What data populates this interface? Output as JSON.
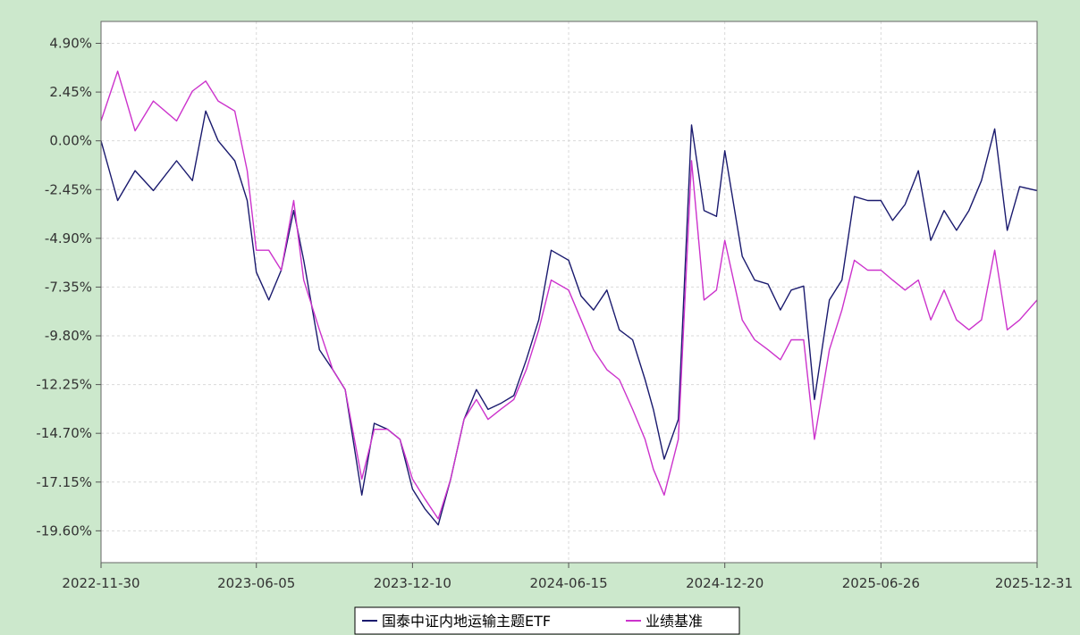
{
  "chart_data": {
    "type": "line",
    "title": "",
    "xlabel": "",
    "ylabel": "",
    "ylim": [
      -21.2,
      6.0
    ],
    "y_ticks": [
      "4.90%",
      "2.45%",
      "0.00%",
      "-2.45%",
      "-4.90%",
      "-7.35%",
      "-9.80%",
      "-12.25%",
      "-14.70%",
      "-17.15%",
      "-19.60%"
    ],
    "y_tick_values": [
      4.9,
      2.45,
      0.0,
      -2.45,
      -4.9,
      -7.35,
      -9.8,
      -12.25,
      -14.7,
      -17.15,
      -19.6
    ],
    "x_ticks": [
      "2022-11-30",
      "2023-06-05",
      "2023-12-10",
      "2024-06-15",
      "2024-12-20",
      "2025-06-26",
      "2025-12-31"
    ],
    "grid": true,
    "legend_position": "bottom",
    "colors": {
      "plot_bg": "#ffffff",
      "page_bg": "#cce8cc",
      "grid": "#d9d9d9"
    },
    "x": [
      "2022-11-30",
      "2022-12-20",
      "2023-01-10",
      "2023-02-01",
      "2023-03-01",
      "2023-03-20",
      "2023-04-05",
      "2023-04-20",
      "2023-05-10",
      "2023-05-25",
      "2023-06-05",
      "2023-06-20",
      "2023-07-05",
      "2023-07-20",
      "2023-08-01",
      "2023-08-20",
      "2023-09-05",
      "2023-09-20",
      "2023-10-10",
      "2023-10-25",
      "2023-11-10",
      "2023-11-25",
      "2023-12-10",
      "2023-12-25",
      "2024-01-10",
      "2024-01-25",
      "2024-02-10",
      "2024-02-25",
      "2024-03-10",
      "2024-03-25",
      "2024-04-10",
      "2024-04-25",
      "2024-05-10",
      "2024-05-25",
      "2024-06-15",
      "2024-06-30",
      "2024-07-15",
      "2024-07-31",
      "2024-08-15",
      "2024-08-31",
      "2024-09-15",
      "2024-09-25",
      "2024-10-08",
      "2024-10-25",
      "2024-11-10",
      "2024-11-25",
      "2024-12-10",
      "2024-12-20",
      "2025-01-10",
      "2025-01-25",
      "2025-02-10",
      "2025-02-25",
      "2025-03-10",
      "2025-03-25",
      "2025-04-07",
      "2025-04-25",
      "2025-05-10",
      "2025-05-25",
      "2025-06-10",
      "2025-06-26",
      "2025-07-10",
      "2025-07-25",
      "2025-08-10",
      "2025-08-25",
      "2025-09-10",
      "2025-09-25",
      "2025-10-10",
      "2025-10-25",
      "2025-11-10",
      "2025-11-25",
      "2025-12-10",
      "2025-12-31"
    ],
    "series": [
      {
        "name": "国泰中证内地运输主题ETF",
        "color": "#1a1a6e",
        "values": [
          0.0,
          -3.0,
          -1.5,
          -2.5,
          -1.0,
          -2.0,
          1.5,
          0.0,
          -1.0,
          -3.0,
          -6.6,
          -8.0,
          -6.5,
          -3.5,
          -6.0,
          -10.5,
          -11.5,
          -12.5,
          -17.8,
          -14.2,
          -14.5,
          -15.0,
          -17.5,
          -18.5,
          -19.3,
          -17.0,
          -14.0,
          -12.5,
          -13.5,
          -13.2,
          -12.8,
          -11.0,
          -9.0,
          -5.5,
          -6.0,
          -7.8,
          -8.5,
          -7.5,
          -9.5,
          -10.0,
          -12.0,
          -13.5,
          -16.0,
          -14.0,
          0.8,
          -3.5,
          -3.8,
          -0.5,
          -5.8,
          -7.0,
          -7.2,
          -8.5,
          -7.5,
          -7.3,
          -13.0,
          -8.0,
          -7.0,
          -2.8,
          -3.0,
          -3.0,
          -4.0,
          -3.2,
          -1.5,
          -5.0,
          -3.5,
          -4.5,
          -3.5,
          -2.0,
          0.6,
          -4.5,
          -2.3,
          -2.5
        ]
      },
      {
        "name": "业绩基准",
        "color": "#cc33cc",
        "values": [
          1.0,
          3.5,
          0.5,
          2.0,
          1.0,
          2.5,
          3.0,
          2.0,
          1.5,
          -1.5,
          -5.5,
          -5.5,
          -6.5,
          -3.0,
          -7.0,
          -9.5,
          -11.5,
          -12.5,
          -17.0,
          -14.5,
          -14.5,
          -15.0,
          -17.0,
          -18.0,
          -19.0,
          -17.0,
          -14.0,
          -13.0,
          -14.0,
          -13.5,
          -13.0,
          -11.5,
          -9.5,
          -7.0,
          -7.5,
          -9.0,
          -10.5,
          -11.5,
          -12.0,
          -13.5,
          -15.0,
          -16.5,
          -17.8,
          -15.0,
          -1.0,
          -8.0,
          -7.5,
          -5.0,
          -9.0,
          -10.0,
          -10.5,
          -11.0,
          -10.0,
          -10.0,
          -15.0,
          -10.5,
          -8.5,
          -6.0,
          -6.5,
          -6.5,
          -7.0,
          -7.5,
          -7.0,
          -9.0,
          -7.5,
          -9.0,
          -9.5,
          -9.0,
          -5.5,
          -9.5,
          -9.0,
          -8.0
        ]
      }
    ]
  },
  "legend": {
    "items": [
      {
        "label": "国泰中证内地运输主题ETF",
        "color": "#1a1a6e"
      },
      {
        "label": "业绩基准",
        "color": "#cc33cc"
      }
    ]
  }
}
